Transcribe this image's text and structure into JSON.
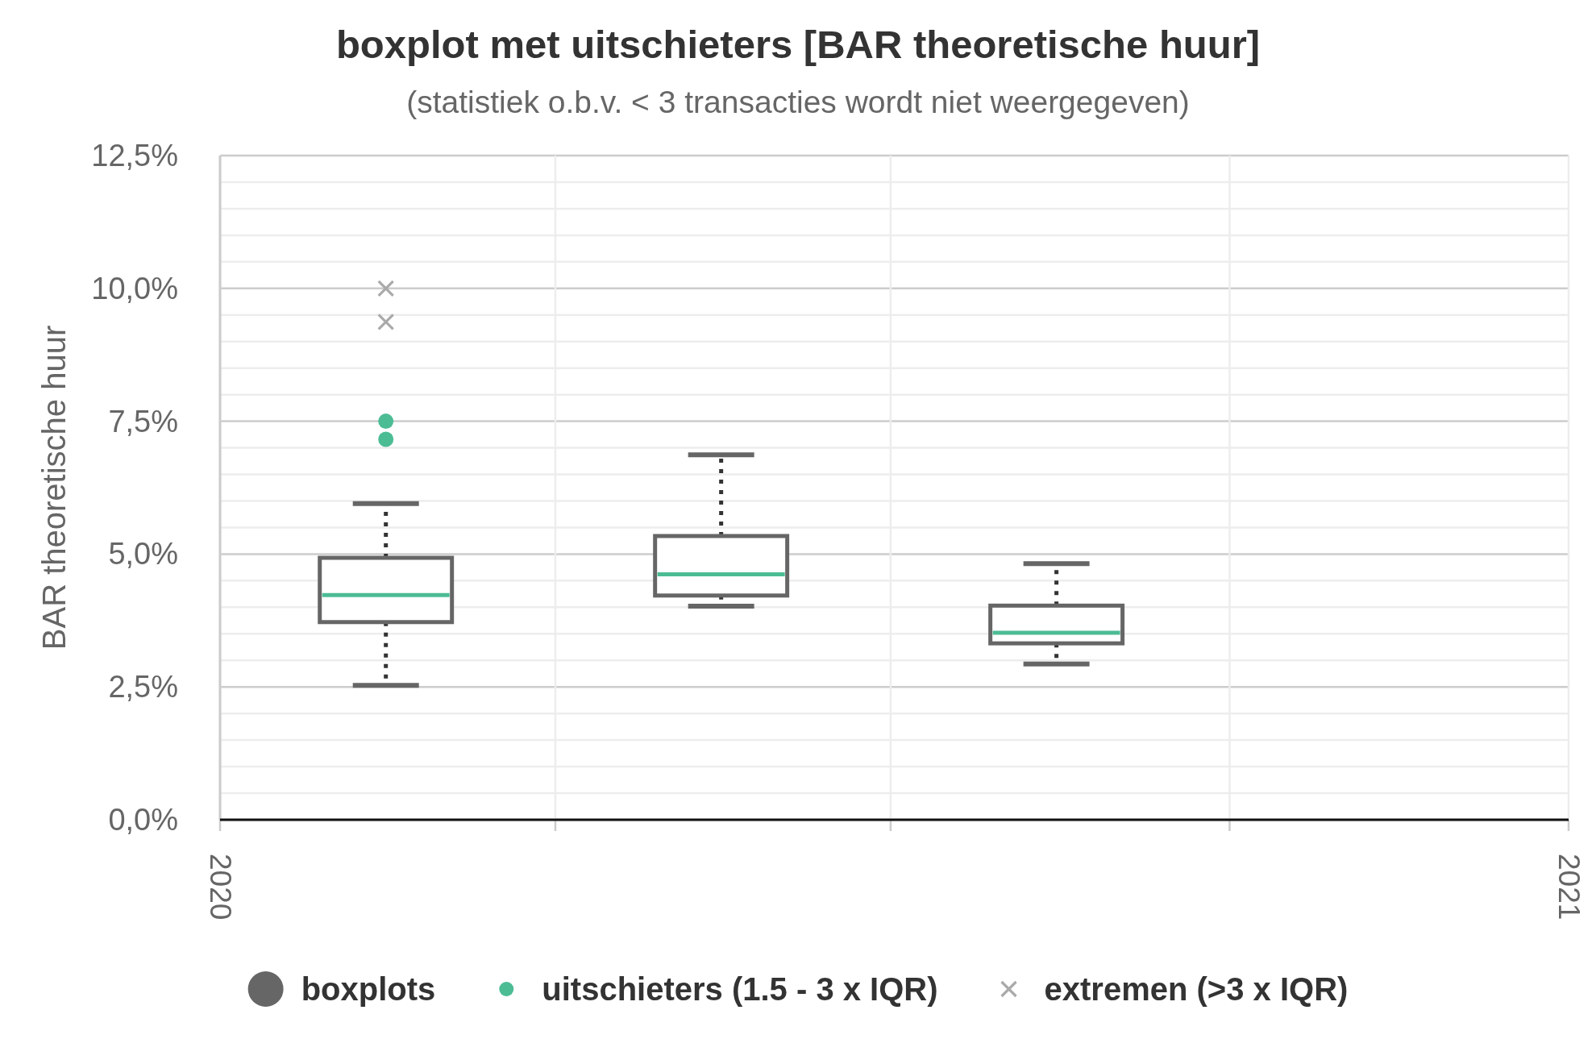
{
  "chart_data": {
    "type": "box",
    "title": "boxplot met uitschieters [BAR theoretische huur]",
    "subtitle": "(statistiek o.b.v. < 3 transacties wordt niet weergegeven)",
    "ylabel": "BAR theoretische huur",
    "xlim": [
      "2020",
      "2021"
    ],
    "xticks": [
      "2020",
      {
        "value": "2020-04-01",
        "label": null
      },
      {
        "value": "2020-07-01",
        "label": null
      },
      {
        "value": "2020-10-01",
        "label": null
      },
      "2021"
    ],
    "ylim": [
      0,
      12.5
    ],
    "yticks": [
      {
        "value": 0,
        "label": "0,0%"
      },
      {
        "value": 0.5,
        "label": null
      },
      {
        "value": 1,
        "label": null
      },
      {
        "value": 1.5,
        "label": null
      },
      {
        "value": 2,
        "label": null
      },
      {
        "value": 2.5,
        "label": "2,5%"
      },
      {
        "value": 3,
        "label": null
      },
      {
        "value": 3.5,
        "label": null
      },
      {
        "value": 4,
        "label": null
      },
      {
        "value": 4.5,
        "label": null
      },
      {
        "value": 5,
        "label": "5,0%"
      },
      {
        "value": 5.5,
        "label": null
      },
      {
        "value": 6,
        "label": null
      },
      {
        "value": 6.5,
        "label": null
      },
      {
        "value": 7,
        "label": null
      },
      {
        "value": 7.5,
        "label": "7,5%"
      },
      {
        "value": 8,
        "label": null
      },
      {
        "value": 8.5,
        "label": null
      },
      {
        "value": 9,
        "label": null
      },
      {
        "value": 9.5,
        "label": null
      },
      {
        "value": 10,
        "label": "10,0%"
      },
      {
        "value": 10.5,
        "label": null
      },
      {
        "value": 11,
        "label": null
      },
      {
        "value": 11.5,
        "label": null
      },
      {
        "value": 12,
        "label": null
      },
      {
        "value": 12.5,
        "label": "12,5%"
      }
    ],
    "grid": true,
    "legend": "bottom",
    "series": [
      {
        "name": "boxplots",
        "color": "#666666",
        "x": [
          "2020-02-15",
          "2020-05-16",
          "2020-08-15"
        ],
        "boxes": [
          {
            "low": 2.53,
            "q1": 3.72,
            "median": 4.23,
            "q3": 4.93,
            "high": 5.95
          },
          {
            "low": 4.02,
            "q1": 4.22,
            "median": 4.62,
            "q3": 5.34,
            "high": 6.87
          },
          {
            "low": 2.93,
            "q1": 3.32,
            "median": 3.52,
            "q3": 4.03,
            "high": 4.82
          }
        ]
      },
      {
        "name": "uitschieters (1.5 - 3 x IQR)",
        "type": "scatter",
        "color": "#4cbc94",
        "marker": "circle",
        "x": [
          "2020-02-15",
          "2020-02-15"
        ],
        "values": [
          7.5,
          7.16
        ]
      },
      {
        "name": "extremen (>3 x IQR)",
        "type": "scatter",
        "color": "#aaaaaa",
        "marker": "cross",
        "x": [
          "2020-02-15",
          "2020-02-15"
        ],
        "values": [
          10.0,
          9.37
        ]
      }
    ]
  }
}
